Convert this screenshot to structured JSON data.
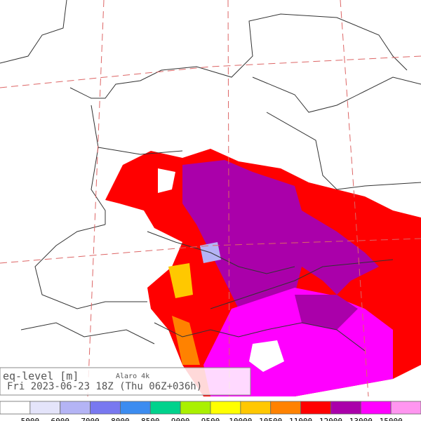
{
  "info": {
    "variable": "eq-level [m]",
    "model": "Alaro 4k",
    "valid_time": "Fri 2023-06-23 18Z (Thu 06Z+036h)"
  },
  "colorbar": {
    "colors": [
      "#ffffff",
      "#e4e4fa",
      "#b4b4f5",
      "#7878f0",
      "#3c8cf0",
      "#00d28c",
      "#aaf000",
      "#ffff00",
      "#ffc800",
      "#ff8200",
      "#ff0000",
      "#aa00aa",
      "#ff00ff",
      "#ff96f0"
    ],
    "ticks": [
      5000,
      6000,
      7000,
      8000,
      8500,
      9000,
      9500,
      10000,
      10500,
      11000,
      12000,
      13000,
      15000
    ]
  }
}
